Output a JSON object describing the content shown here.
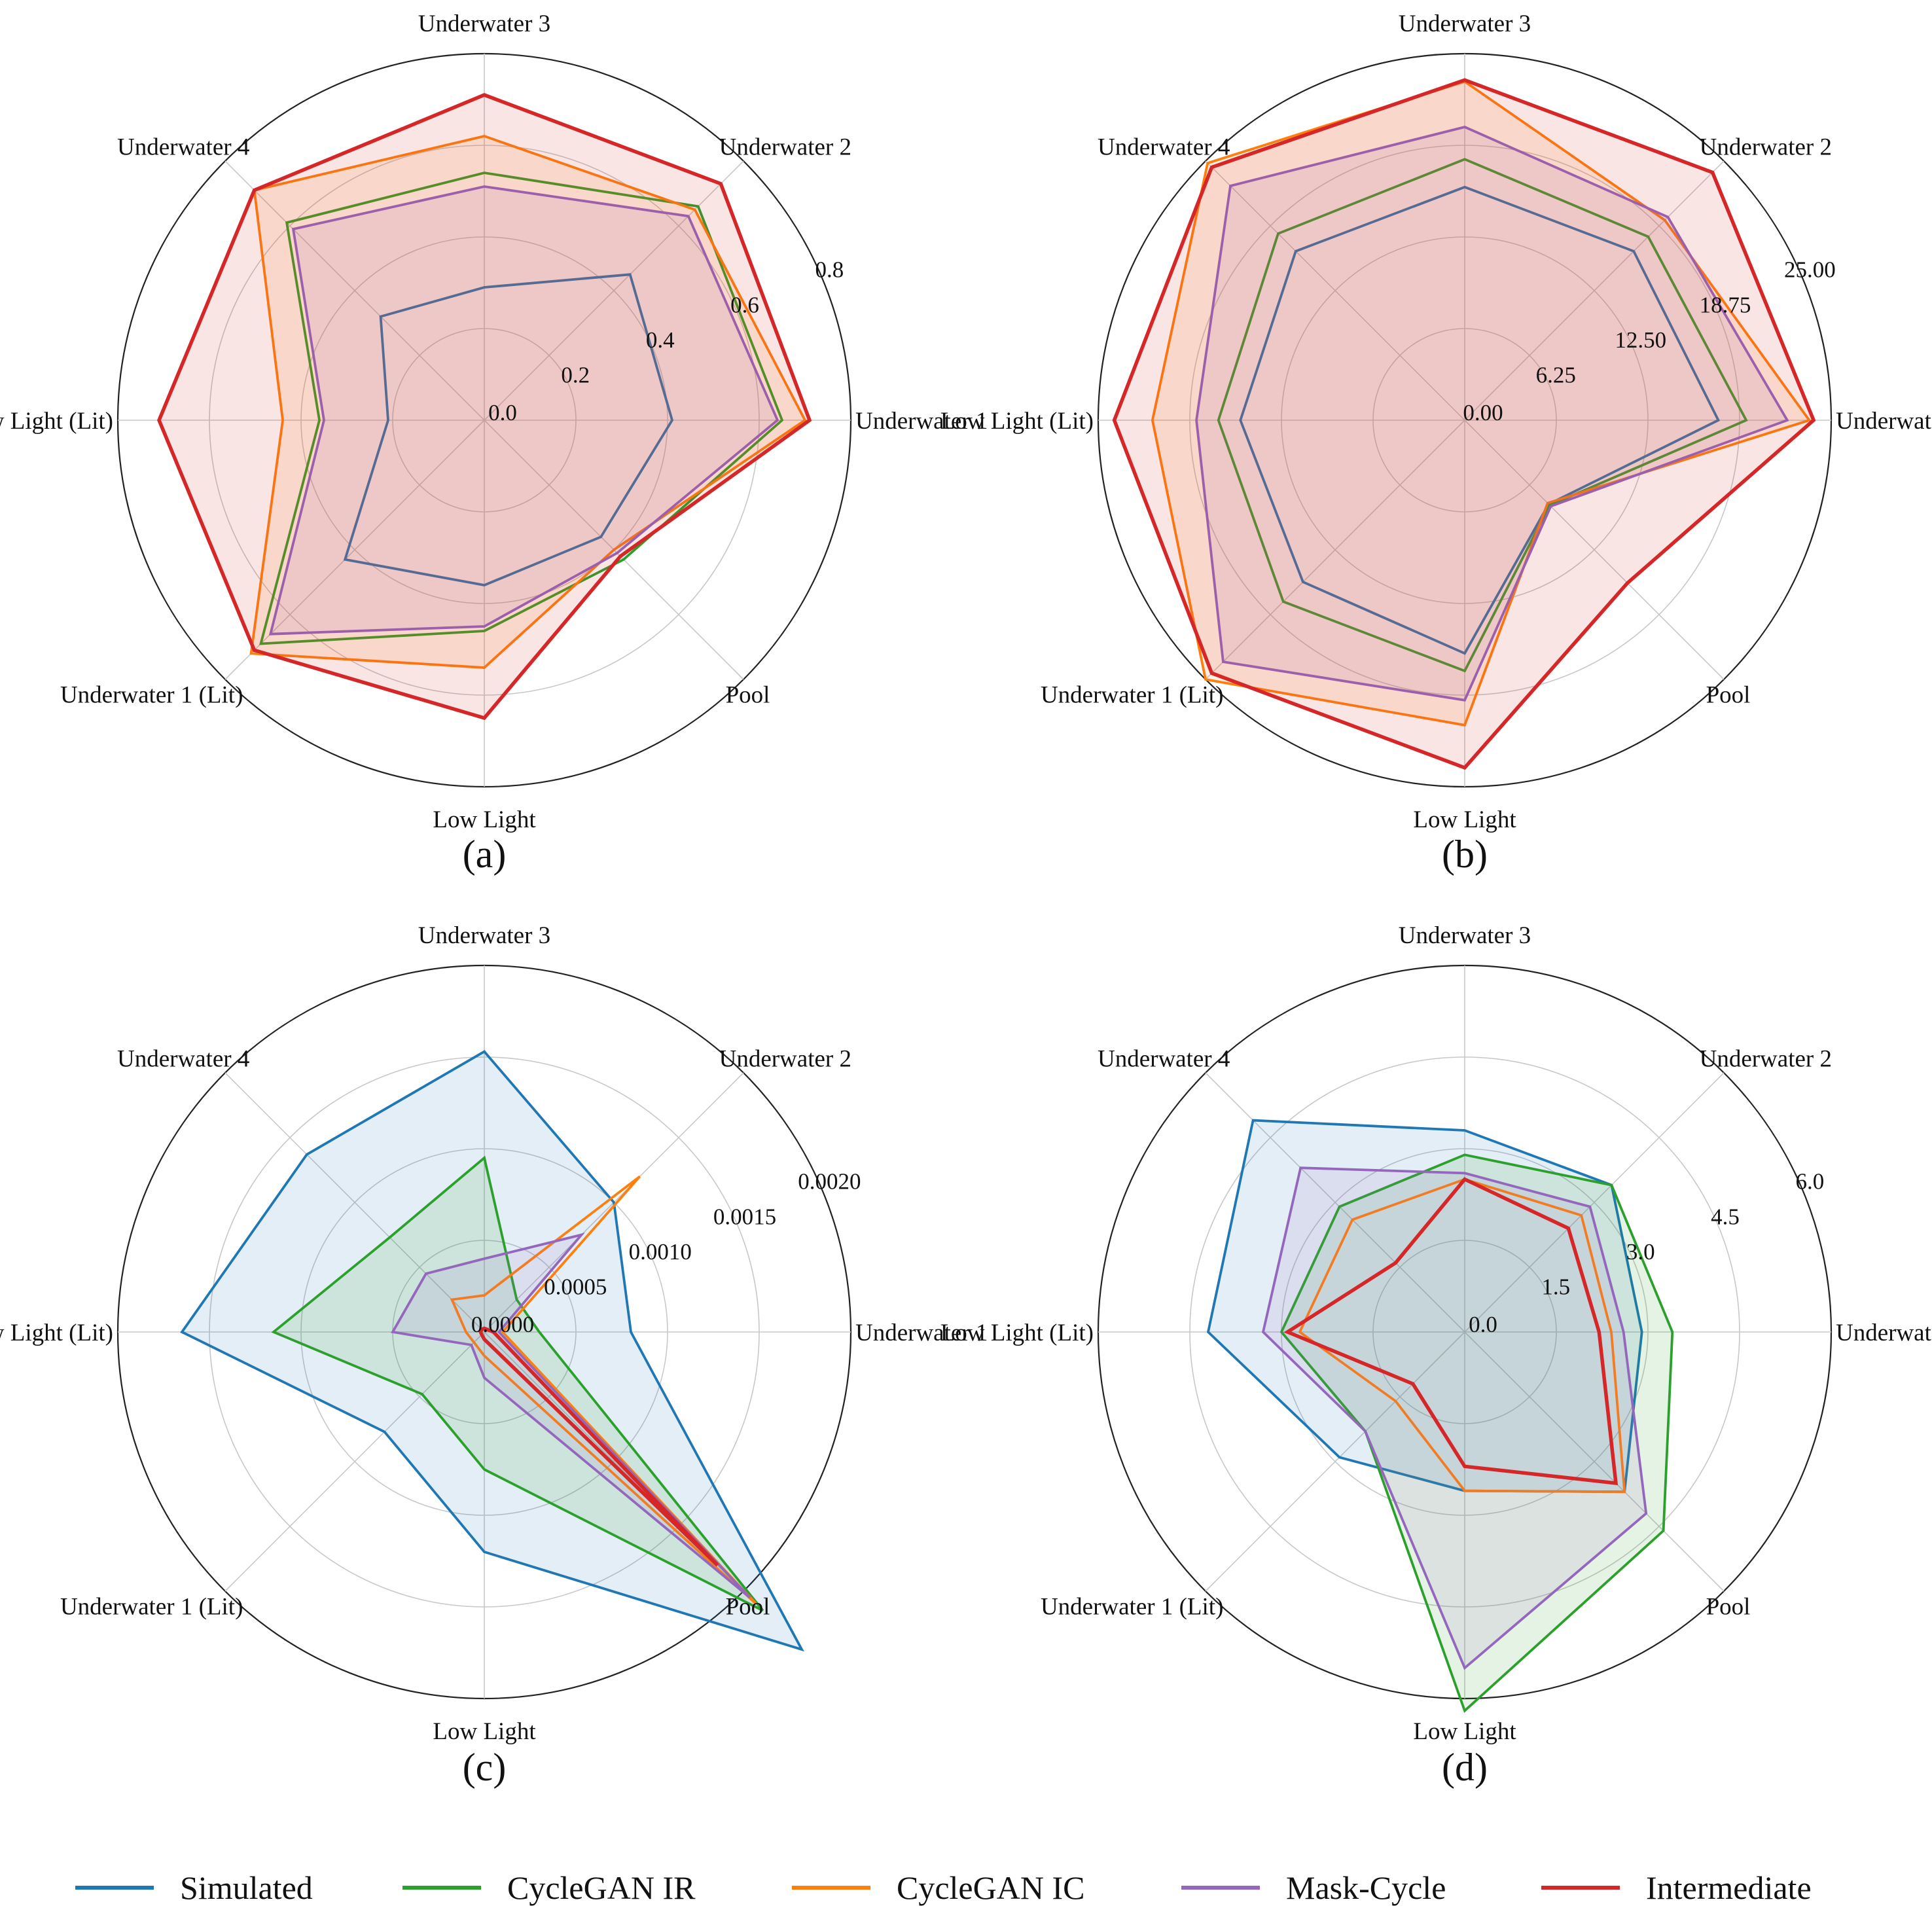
{
  "categories": [
    "Underwater 1",
    "Underwater 2",
    "Underwater 3",
    "Underwater 4",
    "Low Light (Lit)",
    "Underwater 1 (Lit)",
    "Low Light",
    "Pool"
  ],
  "series": [
    {
      "name": "Simulated",
      "color": "#1f77b4"
    },
    {
      "name": "CycleGAN IR",
      "color": "#2ca02c"
    },
    {
      "name": "CycleGAN IC",
      "color": "#ff7f0e"
    },
    {
      "name": "Mask-Cycle",
      "color": "#9467bd"
    },
    {
      "name": "Intermediate",
      "color": "#d62728"
    }
  ],
  "chart_data": [
    {
      "type": "radar",
      "panel": "(a)",
      "rmax": 0.8,
      "ticks": [
        0.0,
        0.2,
        0.4,
        0.6,
        0.8
      ],
      "tick_labels": [
        "0.0",
        "0.2",
        "0.4",
        "0.6",
        "0.8"
      ],
      "filled": [
        "CycleGAN IC",
        "Mask-Cycle",
        "Intermediate"
      ],
      "values": {
        "Simulated": [
          0.41,
          0.45,
          0.29,
          0.32,
          0.21,
          0.43,
          0.36,
          0.36
        ],
        "CycleGAN IR": [
          0.65,
          0.66,
          0.54,
          0.61,
          0.36,
          0.69,
          0.46,
          0.43
        ],
        "CycleGAN IC": [
          0.7,
          0.65,
          0.62,
          0.71,
          0.44,
          0.72,
          0.54,
          0.4
        ],
        "Mask-Cycle": [
          0.64,
          0.63,
          0.51,
          0.59,
          0.35,
          0.66,
          0.45,
          0.41
        ],
        "Intermediate": [
          0.71,
          0.73,
          0.71,
          0.71,
          0.71,
          0.71,
          0.65,
          0.42
        ]
      }
    },
    {
      "type": "radar",
      "panel": "(b)",
      "rmax": 25.0,
      "ticks": [
        0.0,
        6.25,
        12.5,
        18.75,
        25.0
      ],
      "tick_labels": [
        "0.00",
        "6.25",
        "12.50",
        "18.75",
        "25.00"
      ],
      "filled": [
        "CycleGAN IC",
        "Mask-Cycle",
        "Intermediate"
      ],
      "values": {
        "Simulated": [
          17.3,
          16.3,
          15.9,
          16.3,
          15.3,
          15.6,
          15.9,
          8.1
        ],
        "CycleGAN IR": [
          19.2,
          17.7,
          17.8,
          18.0,
          16.8,
          17.5,
          17.1,
          8.2
        ],
        "CycleGAN IC": [
          23.5,
          19.3,
          23.1,
          24.8,
          21.3,
          25.0,
          20.8,
          8.0
        ],
        "Mask-Cycle": [
          22.0,
          19.6,
          20.0,
          22.6,
          18.3,
          23.3,
          19.1,
          8.3
        ],
        "Intermediate": [
          23.8,
          23.9,
          23.2,
          24.4,
          23.9,
          24.4,
          23.7,
          15.7
        ]
      }
    },
    {
      "type": "radar",
      "panel": "(c)",
      "rmax": 0.002,
      "ticks": [
        0.0,
        0.0005,
        0.001,
        0.0015,
        0.002
      ],
      "tick_labels": [
        "0.0000",
        "0.0005",
        "0.0010",
        "0.0015",
        "0.0020"
      ],
      "filled": [
        "Simulated",
        "CycleGAN IR",
        "Mask-Cycle"
      ],
      "values": {
        "Simulated": [
          0.0008,
          0.001,
          0.00153,
          0.00137,
          0.00165,
          0.00077,
          0.0012,
          0.00245
        ],
        "CycleGAN IR": [
          0.0003,
          0.00025,
          0.00095,
          0.00073,
          0.00115,
          0.00048,
          0.00075,
          0.00215
        ],
        "CycleGAN IC": [
          0.0001,
          0.0012,
          0.0002,
          0.00025,
          0.0001,
          8e-05,
          0.00013,
          0.0021
        ],
        "Mask-Cycle": [
          8e-05,
          0.00075,
          0.0004,
          0.00045,
          0.0005,
          0.0001,
          0.00025,
          0.00205
        ],
        "Intermediate": [
          5e-05,
          2e-05,
          2e-05,
          2e-05,
          2e-05,
          2e-05,
          4e-05,
          0.0018
        ]
      }
    },
    {
      "type": "radar",
      "panel": "(d)",
      "rmax": 6.0,
      "ticks": [
        0.0,
        1.5,
        3.0,
        4.5,
        6.0
      ],
      "tick_labels": [
        "0.0",
        "1.5",
        "3.0",
        "4.5",
        "6.0"
      ],
      "filled": [
        "Simulated",
        "CycleGAN IR",
        "Mask-Cycle"
      ],
      "values": {
        "Simulated": [
          2.9,
          3.4,
          3.3,
          4.9,
          4.2,
          2.9,
          2.6,
          3.7
        ],
        "CycleGAN IR": [
          3.4,
          3.4,
          2.9,
          2.9,
          3.0,
          2.3,
          6.2,
          4.6
        ],
        "CycleGAN IC": [
          2.4,
          2.7,
          2.5,
          2.6,
          2.7,
          1.6,
          2.6,
          3.7
        ],
        "Mask-Cycle": [
          2.6,
          2.9,
          2.6,
          3.8,
          3.3,
          2.3,
          5.5,
          4.2
        ],
        "Intermediate": [
          2.2,
          2.4,
          2.5,
          1.6,
          2.9,
          1.2,
          2.2,
          3.5
        ]
      }
    }
  ]
}
